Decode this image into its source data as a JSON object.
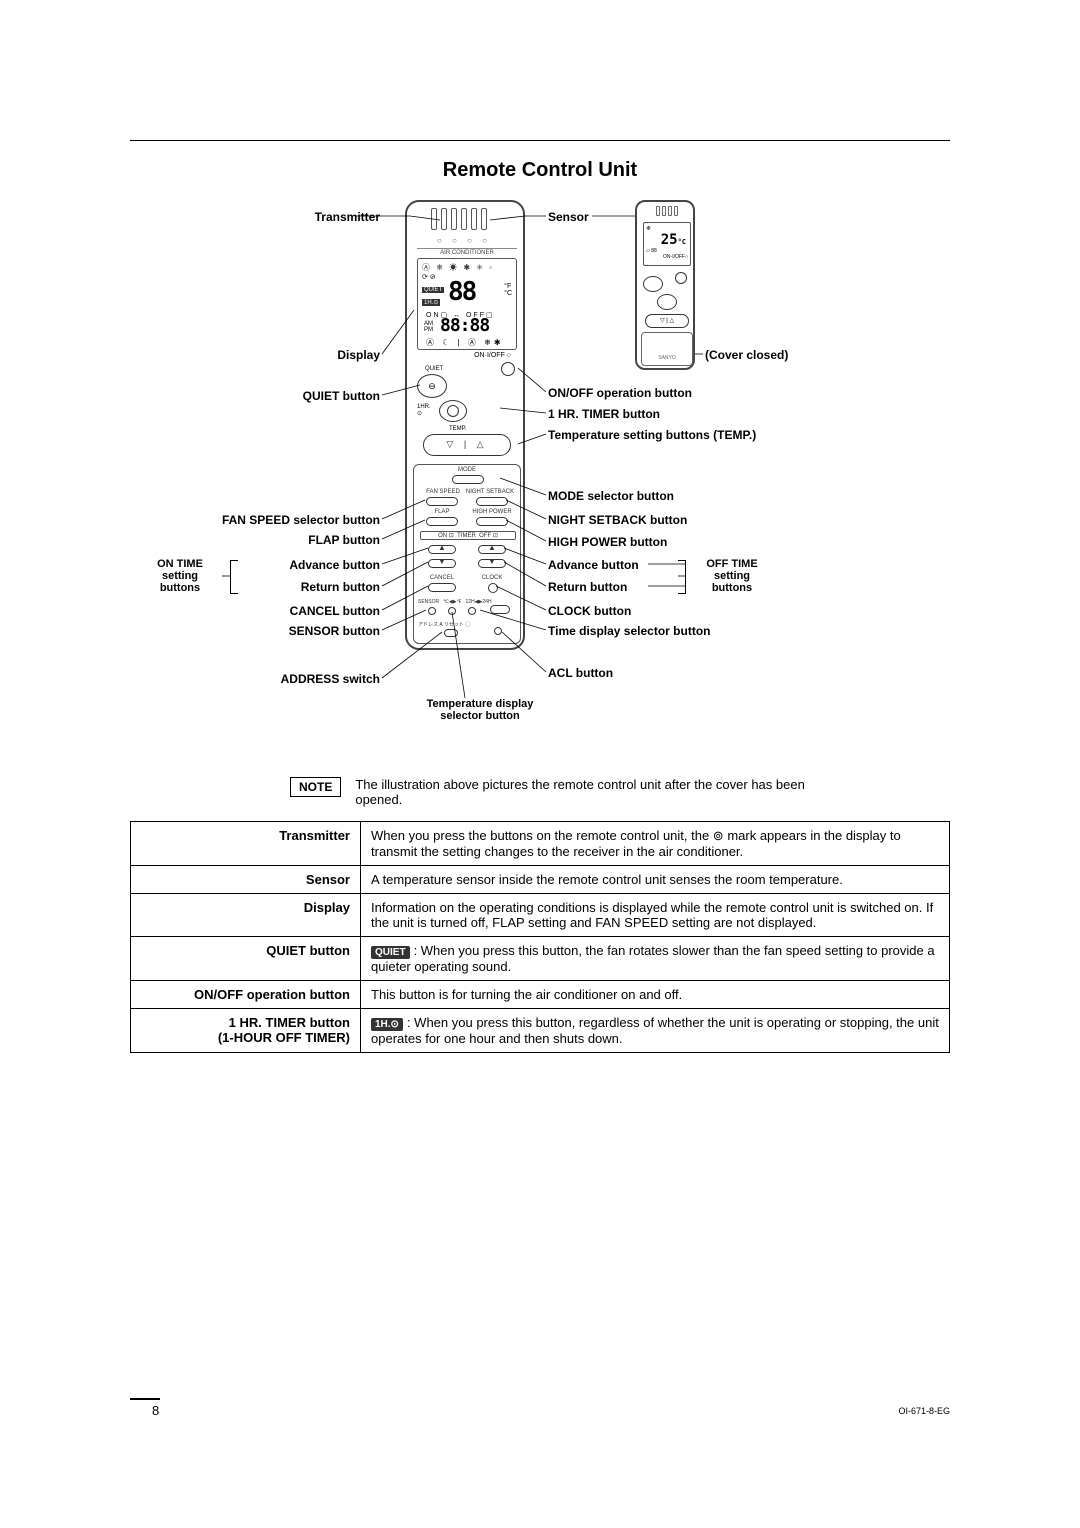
{
  "title": "Remote Control Unit",
  "labels": {
    "transmitter": "Transmitter",
    "sensor": "Sensor",
    "display": "Display",
    "cover_closed": "(Cover closed)",
    "quiet_button": "QUIET button",
    "onoff_button": "ON/OFF operation button",
    "hr_timer": "1 HR. TIMER button",
    "temp_buttons": "Temperature setting buttons (TEMP.)",
    "mode_selector": "MODE selector button",
    "fan_speed": "FAN SPEED selector button",
    "night_setback": "NIGHT SETBACK button",
    "flap": "FLAP button",
    "high_power": "HIGH POWER button",
    "on_time_group": "ON TIME\nsetting\nbuttons",
    "off_time_group": "OFF TIME\nsetting\nbuttons",
    "advance": "Advance button",
    "return": "Return button",
    "cancel": "CANCEL button",
    "clock": "CLOCK button",
    "sensor_btn": "SENSOR button",
    "time_disp": "Time display selector button",
    "address": "ADDRESS switch",
    "acl": "ACL button",
    "temp_disp_sel": "Temperature display\nselector button"
  },
  "note": {
    "label": "NOTE",
    "text": "The illustration above pictures the remote control unit after the cover has been opened."
  },
  "table": [
    {
      "k": "Transmitter",
      "v": "When you press the buttons on the remote control unit, the  ⊚  mark appears in the display to transmit the setting changes to the receiver in the air conditioner."
    },
    {
      "k": "Sensor",
      "v": "A temperature sensor inside the remote control unit senses the room temperature."
    },
    {
      "k": "Display",
      "v": "Information on the operating conditions is displayed while the remote control unit is switched on. If the unit is turned off, FLAP setting and FAN SPEED setting are not displayed."
    },
    {
      "k": "QUIET button",
      "v_pill": "QUIET",
      "v": ": When you press this button, the fan rotates slower than the fan speed setting to provide a quieter operating sound."
    },
    {
      "k": "ON/OFF operation button",
      "v": "This button is for turning the air conditioner on and off."
    },
    {
      "k": "1 HR. TIMER button\n(1-HOUR OFF TIMER)",
      "v_pill": "1H.⊙",
      "v": ": When you press this button, regardless of whether the unit is operating or stopping, the unit operates for one hour and then shuts down."
    }
  ],
  "remote_display": {
    "big_temp": "88",
    "clock": "88:88",
    "closed_temp": "25"
  },
  "footer": {
    "page": "8",
    "docid": "OI-671-8-EG"
  }
}
